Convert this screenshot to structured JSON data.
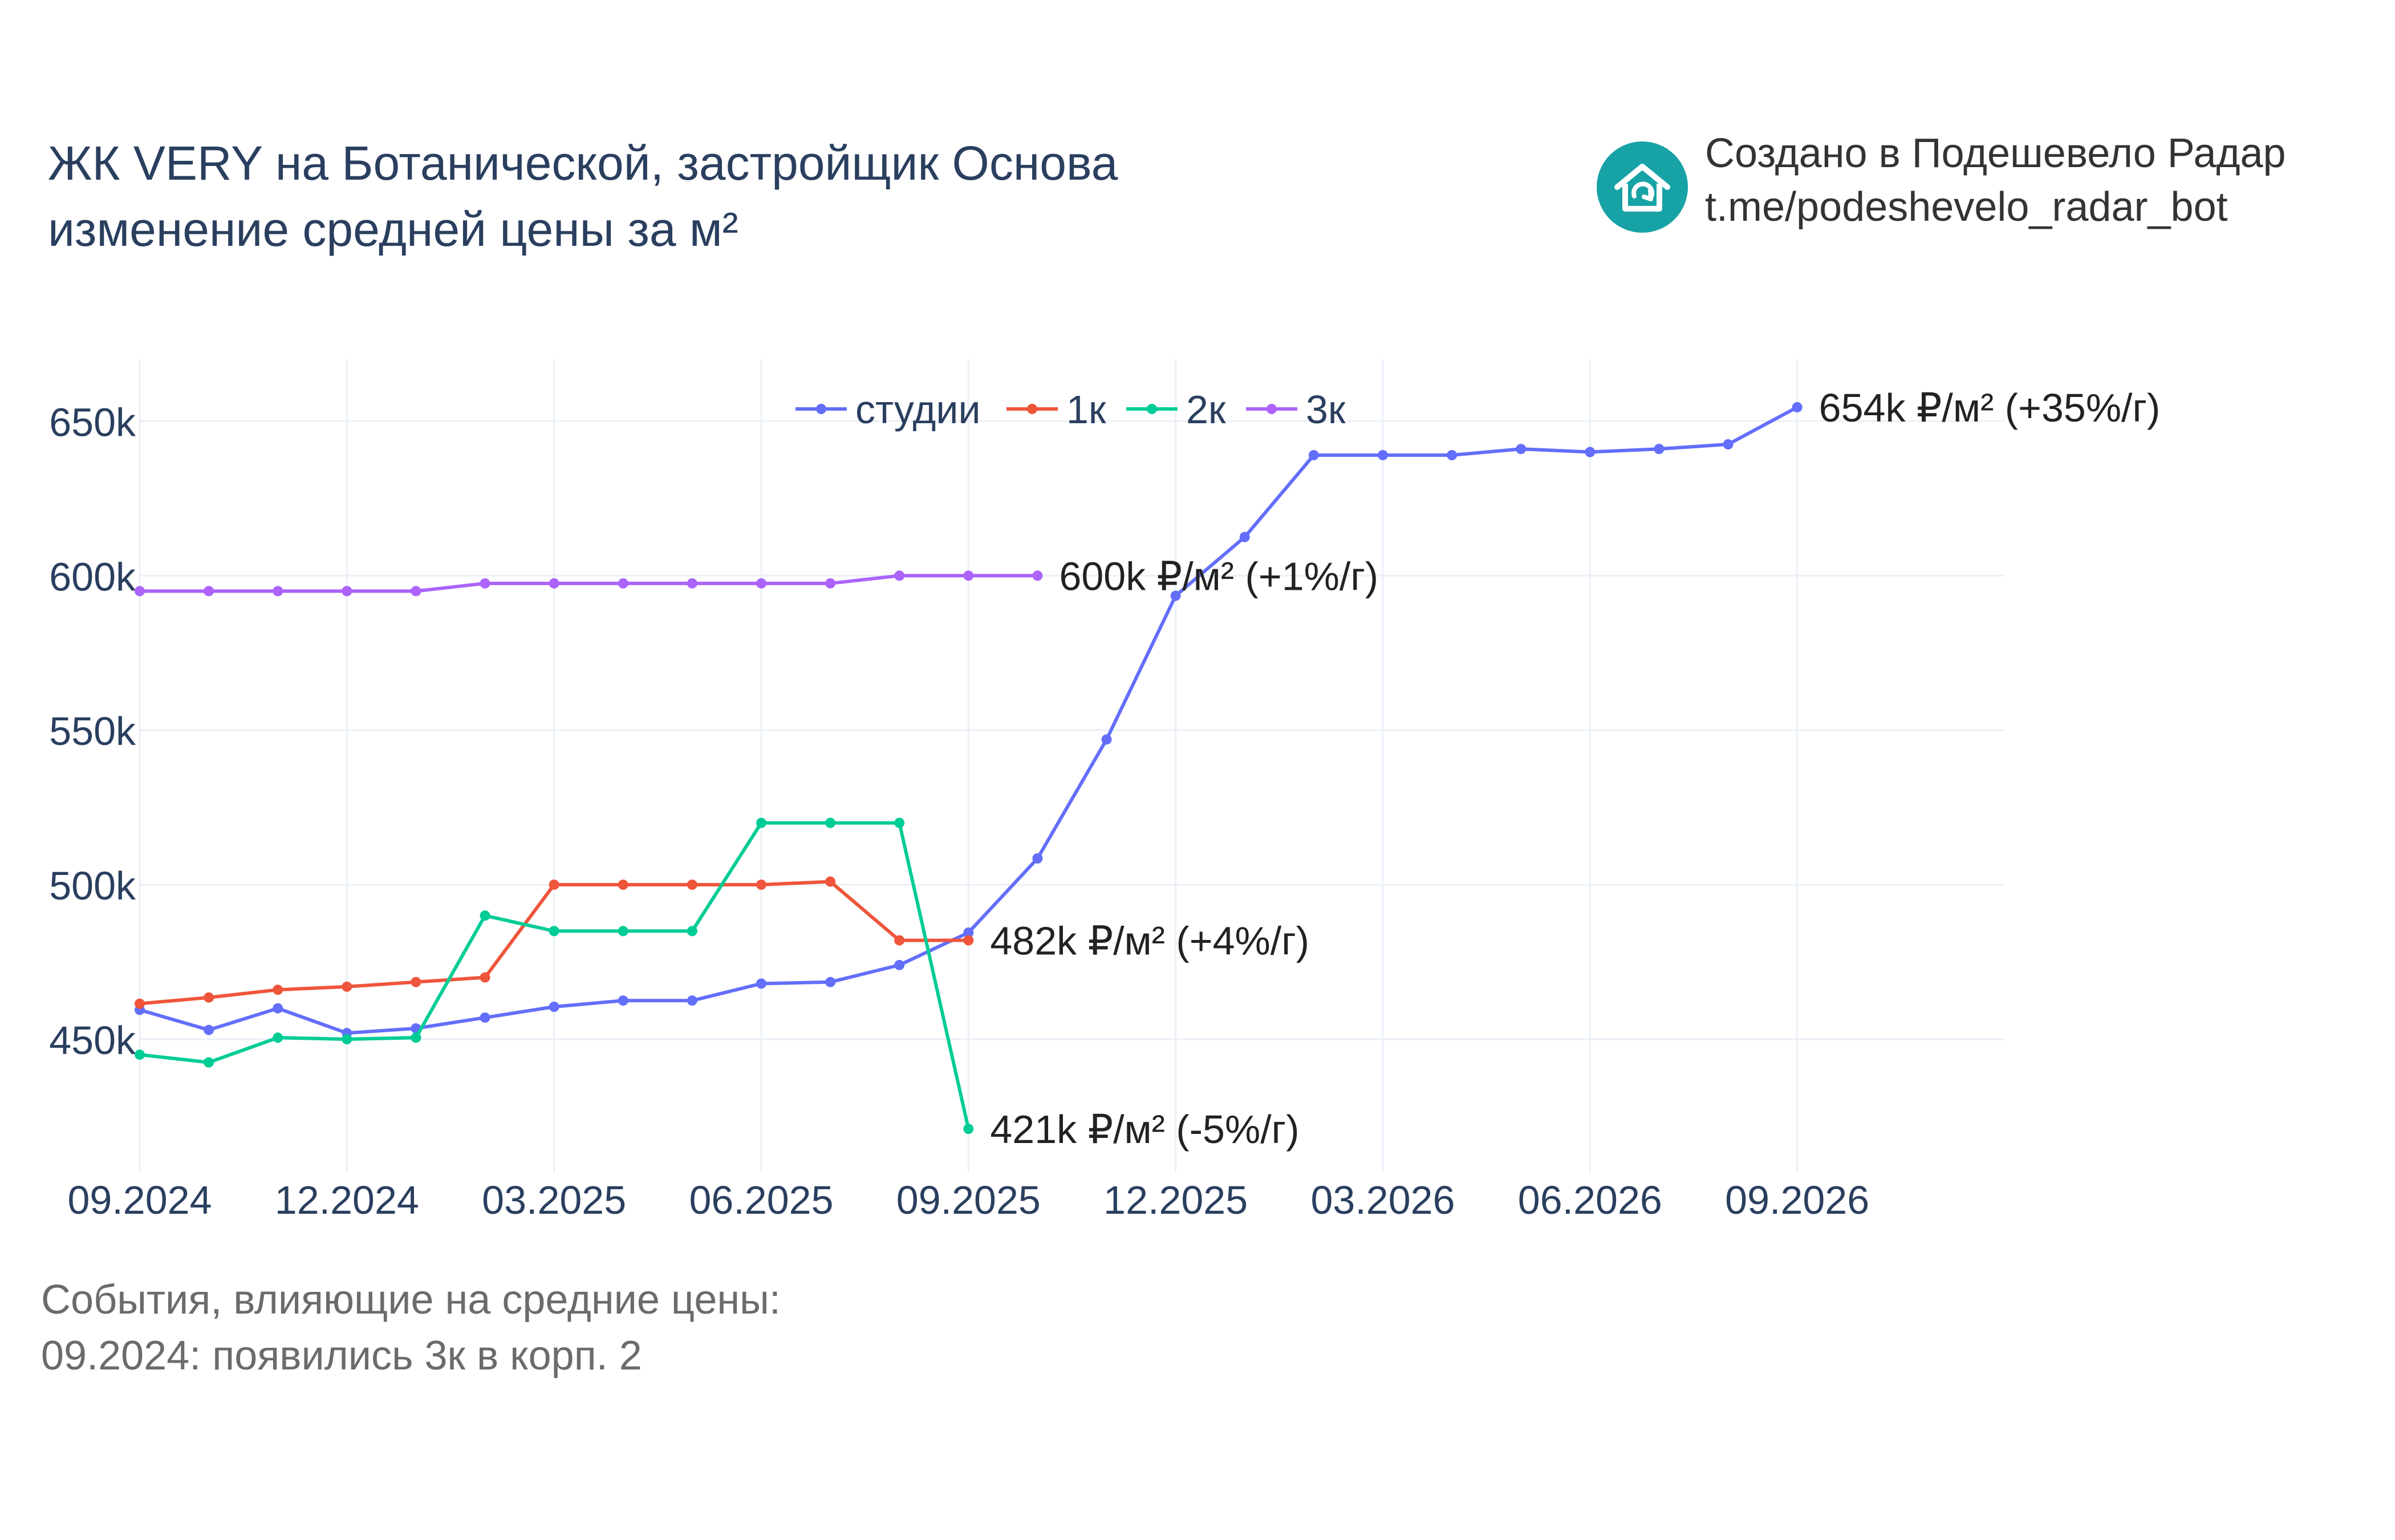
{
  "header": {
    "title_line1": "ЖК VERY на Ботанической, застройщик Основа",
    "title_line2": "изменение средней цены за м²"
  },
  "branding": {
    "line1": "Создано в Подешевело Радар",
    "line2": "t.me/podeshevelo_radar_bot",
    "logo_icon": "house-refresh-icon",
    "logo_color": "#17a2a6"
  },
  "events": {
    "heading": "События, влияющие на средние цены:",
    "items": [
      "09.2024: появились 3к в корп. 2"
    ]
  },
  "chart_data": {
    "type": "line",
    "x_tick_labels": [
      "09.2024",
      "12.2024",
      "03.2025",
      "06.2025",
      "09.2025",
      "12.2025",
      "03.2026",
      "06.2026",
      "09.2026"
    ],
    "y_tick_labels": [
      "450k",
      "500k",
      "550k",
      "600k",
      "650k"
    ],
    "y_ticks": [
      450,
      500,
      550,
      600,
      650
    ],
    "ylim": [
      407,
      670
    ],
    "xlim": [
      "2024-09",
      "2026-12"
    ],
    "grid": true,
    "legend_position": "top-center",
    "series": [
      {
        "name": "студии",
        "color": "#636efa",
        "points": [
          [
            "2024-09",
            459.5
          ],
          [
            "2024-10",
            453
          ],
          [
            "2024-11",
            460
          ],
          [
            "2024-12",
            452
          ],
          [
            "2025-01",
            453.5
          ],
          [
            "2025-02",
            457
          ],
          [
            "2025-03",
            460.5
          ],
          [
            "2025-04",
            462.5
          ],
          [
            "2025-05",
            462.5
          ],
          [
            "2025-06",
            468
          ],
          [
            "2025-07",
            468.5
          ],
          [
            "2025-08",
            474
          ],
          [
            "2025-09",
            484.5
          ],
          [
            "2025-10",
            508.5
          ],
          [
            "2025-11",
            547
          ],
          [
            "2025-12",
            593.5
          ],
          [
            "2026-01",
            612.5
          ],
          [
            "2026-02",
            639
          ],
          [
            "2026-03",
            639
          ],
          [
            "2026-04",
            639
          ],
          [
            "2026-05",
            641
          ],
          [
            "2026-06",
            640
          ],
          [
            "2026-07",
            641
          ],
          [
            "2026-08",
            642.5
          ],
          [
            "2026-09",
            654.5
          ]
        ],
        "end_label": "654k ₽/м² (+35%/г)"
      },
      {
        "name": "1к",
        "color": "#ef553b",
        "points": [
          [
            "2024-09",
            461.5
          ],
          [
            "2024-10",
            463.5
          ],
          [
            "2024-11",
            466
          ],
          [
            "2024-12",
            467
          ],
          [
            "2025-01",
            468.5
          ],
          [
            "2025-02",
            470
          ],
          [
            "2025-03",
            500
          ],
          [
            "2025-04",
            500
          ],
          [
            "2025-05",
            500
          ],
          [
            "2025-06",
            500
          ],
          [
            "2025-07",
            501
          ],
          [
            "2025-08",
            482
          ],
          [
            "2025-09",
            482
          ]
        ],
        "end_label": "482k ₽/м² (+4%/г)"
      },
      {
        "name": "2к",
        "color": "#00cc96",
        "points": [
          [
            "2024-09",
            445
          ],
          [
            "2024-10",
            442.5
          ],
          [
            "2024-11",
            450.5
          ],
          [
            "2024-12",
            450
          ],
          [
            "2025-01",
            450.5
          ],
          [
            "2025-02",
            490
          ],
          [
            "2025-03",
            485
          ],
          [
            "2025-04",
            485
          ],
          [
            "2025-05",
            485
          ],
          [
            "2025-06",
            520
          ],
          [
            "2025-07",
            520
          ],
          [
            "2025-08",
            520
          ],
          [
            "2025-09",
            421
          ]
        ],
        "end_label": "421k ₽/м² (-5%/г)"
      },
      {
        "name": "3к",
        "color": "#ab63fa",
        "points": [
          [
            "2024-09",
            595
          ],
          [
            "2024-10",
            595
          ],
          [
            "2024-11",
            595
          ],
          [
            "2024-12",
            595
          ],
          [
            "2025-01",
            595
          ],
          [
            "2025-02",
            597.5
          ],
          [
            "2025-03",
            597.5
          ],
          [
            "2025-04",
            597.5
          ],
          [
            "2025-05",
            597.5
          ],
          [
            "2025-06",
            597.5
          ],
          [
            "2025-07",
            597.5
          ],
          [
            "2025-08",
            600
          ],
          [
            "2025-09",
            600
          ],
          [
            "2025-10",
            600
          ]
        ],
        "end_label": "600k ₽/м² (+1%/г)"
      }
    ]
  }
}
